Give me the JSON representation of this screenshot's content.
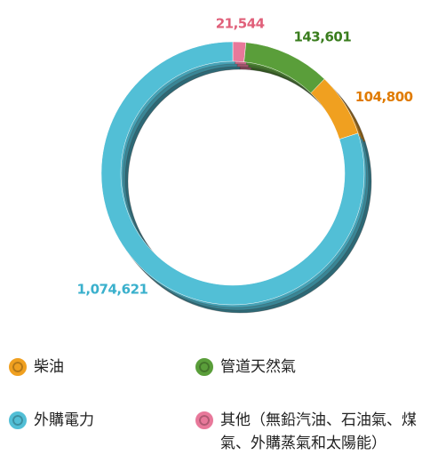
{
  "chart_data": {
    "type": "donut",
    "categories": [
      "其他（無鉛汽油、石油氣、煤氣、外購蒸氣和太陽能）",
      "管道天然氣",
      "柴油",
      "外購電力"
    ],
    "values": [
      21544,
      143601,
      104800,
      1074621
    ],
    "value_labels": [
      "21,544",
      "143,601",
      "104,800",
      "1,074,621"
    ],
    "colors": [
      "#e8789a",
      "#5a9e3a",
      "#f0a020",
      "#52bfd6"
    ],
    "label_colors": [
      "#e0607a",
      "#3a7d1e",
      "#e07b00",
      "#3ab0cc"
    ]
  }
}
